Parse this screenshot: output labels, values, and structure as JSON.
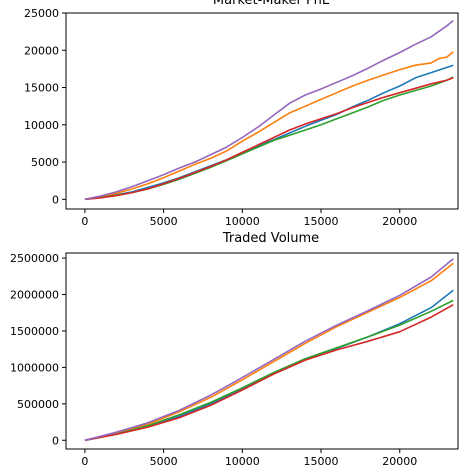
{
  "chart_data": [
    {
      "type": "line",
      "title": "Market-Maker PnL",
      "xlabel": "",
      "ylabel": "",
      "xlim": [
        -1200,
        23700
      ],
      "ylim": [
        -1300,
        25000
      ],
      "xticks": [
        0,
        5000,
        10000,
        15000,
        20000
      ],
      "xtick_labels": [
        "0",
        "5000",
        "10000",
        "15000",
        "20000"
      ],
      "yticks": [
        0,
        5000,
        10000,
        15000,
        20000,
        25000
      ],
      "ytick_labels": [
        "0",
        "5000",
        "10000",
        "15000",
        "20000",
        "25000"
      ],
      "grid": false,
      "series": [
        {
          "color": "#1f77b4",
          "x": [
            0,
            1000,
            2000,
            3000,
            4000,
            5000,
            6000,
            7000,
            8000,
            9000,
            10000,
            11000,
            12000,
            13000,
            14000,
            15000,
            16000,
            17000,
            18000,
            19000,
            20000,
            21000,
            22000,
            23000,
            23400
          ],
          "y": [
            0,
            300,
            600,
            1000,
            1600,
            2200,
            2900,
            3700,
            4500,
            5300,
            6300,
            7200,
            8000,
            8900,
            9800,
            10600,
            11400,
            12400,
            13300,
            14300,
            15200,
            16300,
            17000,
            17700,
            18000
          ]
        },
        {
          "color": "#ff7f0e",
          "x": [
            0,
            1000,
            2000,
            3000,
            4000,
            5000,
            6000,
            7000,
            8000,
            9000,
            10000,
            11000,
            12000,
            13000,
            14000,
            15000,
            16000,
            17000,
            18000,
            19000,
            20000,
            21000,
            22000,
            22500,
            23000,
            23400
          ],
          "y": [
            0,
            350,
            800,
            1400,
            2100,
            2900,
            3800,
            4700,
            5500,
            6500,
            7800,
            9000,
            10300,
            11600,
            12500,
            13400,
            14300,
            15200,
            16000,
            16700,
            17400,
            18000,
            18300,
            18900,
            19100,
            19800
          ]
        },
        {
          "color": "#2ca02c",
          "x": [
            0,
            1000,
            2000,
            3000,
            4000,
            5000,
            6000,
            7000,
            8000,
            9000,
            10000,
            11000,
            12000,
            13000,
            14000,
            15000,
            16000,
            17000,
            18000,
            19000,
            20000,
            21000,
            22000,
            23000,
            23400
          ],
          "y": [
            0,
            250,
            550,
            900,
            1400,
            2000,
            2700,
            3500,
            4300,
            5200,
            6100,
            7000,
            7900,
            8600,
            9300,
            10000,
            10800,
            11600,
            12400,
            13300,
            14000,
            14600,
            15200,
            16000,
            16400
          ]
        },
        {
          "color": "#d62728",
          "x": [
            0,
            1000,
            2000,
            3000,
            4000,
            5000,
            6000,
            7000,
            8000,
            9000,
            10000,
            11000,
            12000,
            13000,
            14000,
            15000,
            16000,
            17000,
            18000,
            19000,
            20000,
            21000,
            22000,
            23000,
            23400
          ],
          "y": [
            0,
            200,
            500,
            900,
            1400,
            2100,
            2800,
            3600,
            4400,
            5300,
            6300,
            7300,
            8300,
            9300,
            10100,
            10800,
            11500,
            12300,
            13000,
            13700,
            14300,
            14900,
            15500,
            16000,
            16300
          ]
        },
        {
          "color": "#9467bd",
          "x": [
            0,
            1000,
            2000,
            3000,
            4000,
            5000,
            6000,
            7000,
            8000,
            9000,
            10000,
            11000,
            12000,
            13000,
            14000,
            15000,
            16000,
            17000,
            18000,
            19000,
            20000,
            21000,
            22000,
            23000,
            23400
          ],
          "y": [
            0,
            450,
            1000,
            1700,
            2500,
            3300,
            4200,
            5000,
            6000,
            7000,
            8300,
            9700,
            11300,
            12900,
            14000,
            14800,
            15700,
            16600,
            17600,
            18700,
            19700,
            20800,
            21800,
            23300,
            24000
          ]
        }
      ]
    },
    {
      "type": "line",
      "title": "Traded Volume",
      "xlabel": "",
      "ylabel": "",
      "xlim": [
        -1200,
        23700
      ],
      "ylim": [
        -120000,
        2570000
      ],
      "xticks": [
        0,
        5000,
        10000,
        15000,
        20000
      ],
      "xtick_labels": [
        "0",
        "5000",
        "10000",
        "15000",
        "20000"
      ],
      "yticks": [
        0,
        500000,
        1000000,
        1500000,
        2000000,
        2500000
      ],
      "ytick_labels": [
        "0",
        "500000",
        "1000000",
        "1500000",
        "2000000",
        "2500000"
      ],
      "grid": false,
      "series": [
        {
          "color": "#1f77b4",
          "x": [
            0,
            2000,
            4000,
            6000,
            8000,
            10000,
            12000,
            14000,
            16000,
            18000,
            20000,
            22000,
            23400
          ],
          "y": [
            0,
            90000,
            190000,
            330000,
            500000,
            700000,
            920000,
            1120000,
            1260000,
            1420000,
            1600000,
            1820000,
            2060000
          ]
        },
        {
          "color": "#ff7f0e",
          "x": [
            0,
            2000,
            4000,
            6000,
            8000,
            10000,
            12000,
            14000,
            16000,
            18000,
            20000,
            22000,
            23400
          ],
          "y": [
            0,
            100000,
            220000,
            390000,
            590000,
            830000,
            1080000,
            1330000,
            1560000,
            1760000,
            1960000,
            2190000,
            2430000
          ]
        },
        {
          "color": "#2ca02c",
          "x": [
            0,
            2000,
            4000,
            6000,
            8000,
            10000,
            12000,
            14000,
            16000,
            18000,
            20000,
            22000,
            23400
          ],
          "y": [
            0,
            85000,
            200000,
            350000,
            520000,
            720000,
            930000,
            1120000,
            1270000,
            1420000,
            1580000,
            1770000,
            1920000
          ]
        },
        {
          "color": "#d62728",
          "x": [
            0,
            2000,
            4000,
            6000,
            8000,
            10000,
            12000,
            14000,
            16000,
            18000,
            20000,
            22000,
            23400
          ],
          "y": [
            0,
            80000,
            180000,
            310000,
            480000,
            690000,
            910000,
            1100000,
            1240000,
            1360000,
            1490000,
            1690000,
            1860000
          ]
        },
        {
          "color": "#9467bd",
          "x": [
            0,
            2000,
            4000,
            6000,
            8000,
            10000,
            12000,
            14000,
            16000,
            18000,
            20000,
            22000,
            23400
          ],
          "y": [
            0,
            110000,
            240000,
            410000,
            620000,
            860000,
            1110000,
            1360000,
            1580000,
            1780000,
            1990000,
            2240000,
            2490000
          ]
        }
      ]
    }
  ]
}
